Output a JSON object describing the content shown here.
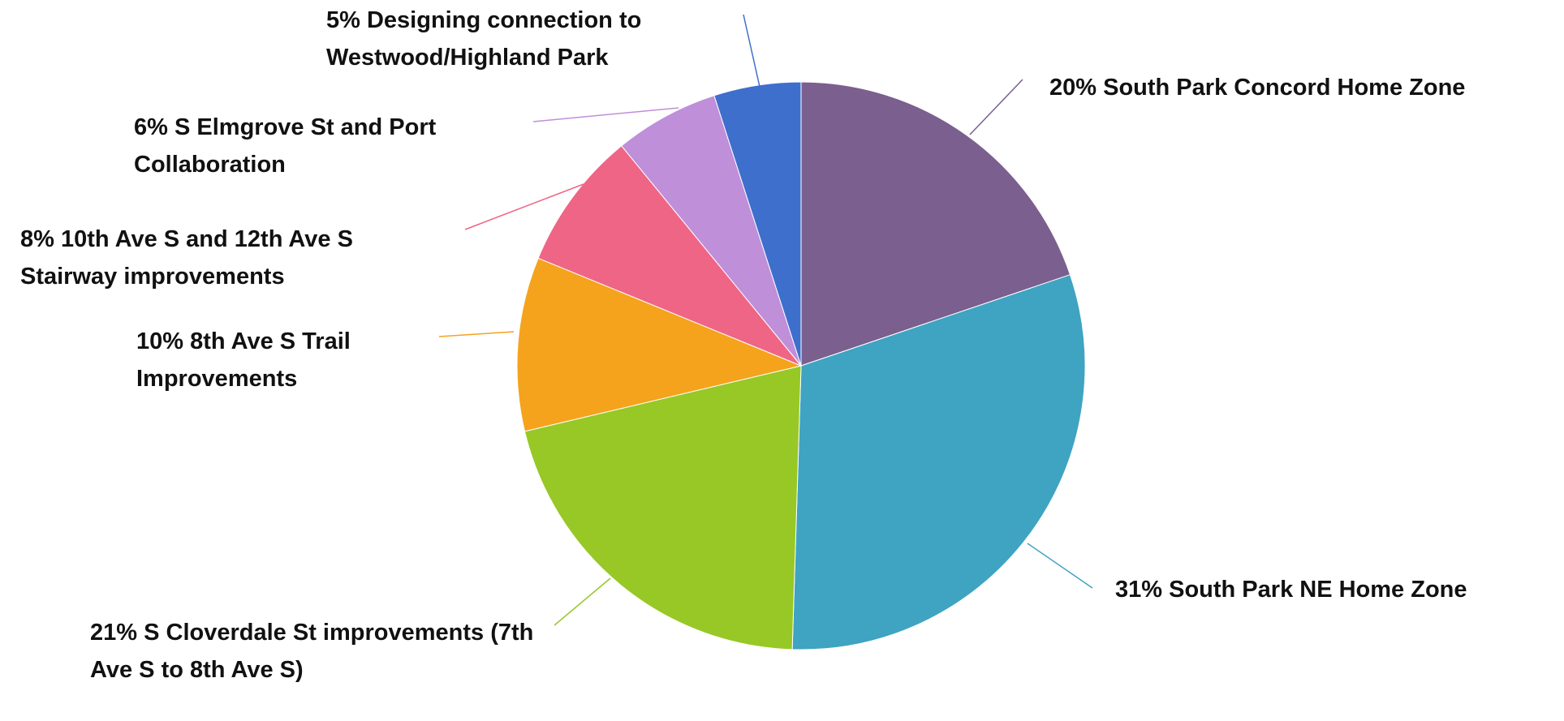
{
  "chart_data": {
    "type": "pie",
    "categories": [
      "South Park Concord Home Zone",
      "South Park NE Home Zone",
      "S Cloverdale St improvements (7th Ave S to 8th Ave S)",
      "8th Ave S Trail Improvements",
      "10th Ave S and 12th Ave S Stairway improvements",
      "S Elmgrove St and Port Collaboration",
      "Designing connection to Westwood/Highland Park"
    ],
    "values": [
      20,
      31,
      21,
      10,
      8,
      6,
      5
    ],
    "value_labels": [
      "20%",
      "31%",
      "21%",
      "10%",
      "8%",
      "6%",
      "5%"
    ],
    "colors": [
      "#7b5f8e",
      "#3fa3c2",
      "#97c825",
      "#f5a31c",
      "#ef6586",
      "#bf8fd9",
      "#3f6fcc"
    ]
  }
}
